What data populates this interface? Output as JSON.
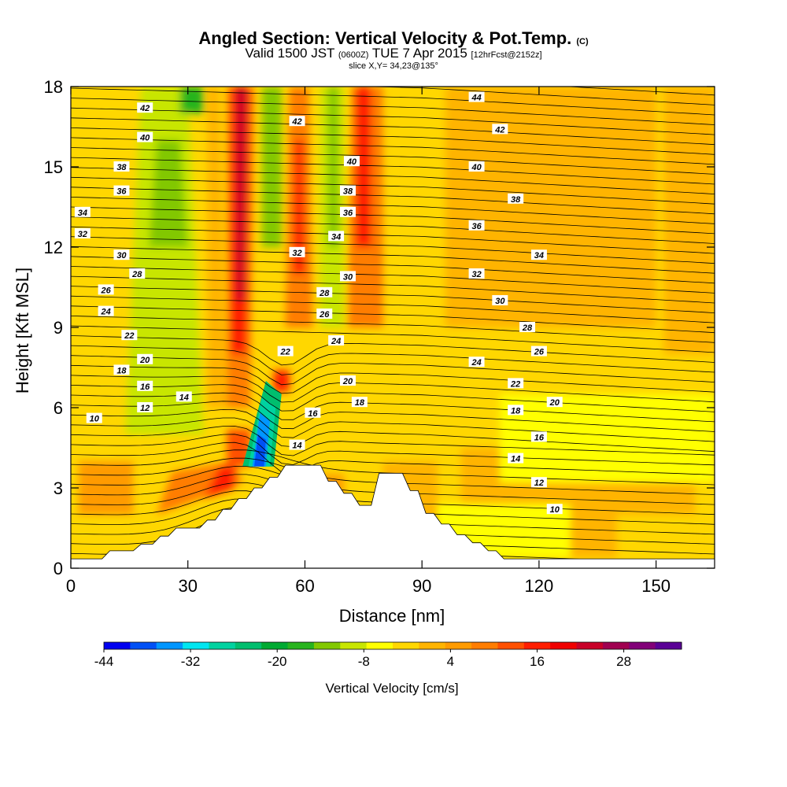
{
  "title": {
    "main": "Angled Section: Vertical Velocity & Pot.Temp.",
    "main_suffix": "(C)",
    "valid_prefix": "Valid 1500 JST",
    "valid_utc": "(0600Z)",
    "valid_date": "TUE 7 Apr 2015",
    "forecast": "[12hrFcst@2152z]",
    "slice": "slice X,Y= 34,23@135°"
  },
  "chart_data": {
    "type": "heatmap",
    "xlabel": "Distance [nm]",
    "ylabel": "Height [Kft MSL]",
    "xlim": [
      0,
      165
    ],
    "ylim": [
      0,
      18
    ],
    "x_ticks": [
      0,
      30,
      60,
      90,
      120,
      150
    ],
    "y_ticks": [
      0,
      3,
      6,
      9,
      12,
      15,
      18
    ],
    "colorbar": {
      "label": "Vertical Velocity [cm/s]",
      "ticks": [
        "-44",
        "-32",
        "-20",
        "-8",
        "4",
        "16",
        "28"
      ],
      "min": -44,
      "max": 36,
      "step": 4,
      "colors": [
        "#0000f0",
        "#0050f5",
        "#0096ff",
        "#00e6f0",
        "#00d2a0",
        "#00be6e",
        "#00aa32",
        "#28b41e",
        "#82c800",
        "#c8e600",
        "#ffff00",
        "#ffd700",
        "#ffb400",
        "#ff9b00",
        "#ff7d00",
        "#ff5000",
        "#ff1e00",
        "#f00000",
        "#c80028",
        "#a00050",
        "#820078",
        "#5a0096"
      ]
    },
    "terrain": [
      [
        0,
        0.35
      ],
      [
        8,
        0.35
      ],
      [
        10,
        0.65
      ],
      [
        16,
        0.65
      ],
      [
        18,
        0.9
      ],
      [
        21,
        0.9
      ],
      [
        23,
        1.2
      ],
      [
        25,
        1.2
      ],
      [
        27,
        1.5
      ],
      [
        33,
        1.5
      ],
      [
        35,
        1.8
      ],
      [
        37,
        1.8
      ],
      [
        39,
        2.2
      ],
      [
        41,
        2.2
      ],
      [
        43,
        2.6
      ],
      [
        45,
        2.6
      ],
      [
        47,
        3.0
      ],
      [
        49,
        3.0
      ],
      [
        51,
        3.4
      ],
      [
        53,
        3.4
      ],
      [
        55,
        3.85
      ],
      [
        64,
        3.85
      ],
      [
        66,
        3.25
      ],
      [
        68,
        3.25
      ],
      [
        70,
        2.8
      ],
      [
        72,
        2.8
      ],
      [
        74,
        2.35
      ],
      [
        77,
        2.35
      ],
      [
        79,
        3.55
      ],
      [
        85,
        3.55
      ],
      [
        87,
        2.9
      ],
      [
        89,
        2.9
      ],
      [
        91,
        2.05
      ],
      [
        93,
        2.05
      ],
      [
        95,
        1.65
      ],
      [
        97,
        1.65
      ],
      [
        99,
        1.25
      ],
      [
        101,
        1.25
      ],
      [
        103,
        0.95
      ],
      [
        105,
        0.95
      ],
      [
        107,
        0.65
      ],
      [
        109,
        0.65
      ],
      [
        111,
        0.35
      ],
      [
        165,
        0.35
      ]
    ],
    "contour_labels": [
      {
        "x": 19,
        "y": 17.2,
        "v": "42"
      },
      {
        "x": 19,
        "y": 16.1,
        "v": "40"
      },
      {
        "x": 13,
        "y": 15.0,
        "v": "38"
      },
      {
        "x": 13,
        "y": 14.1,
        "v": "36"
      },
      {
        "x": 3,
        "y": 13.3,
        "v": "34"
      },
      {
        "x": 3,
        "y": 12.5,
        "v": "32"
      },
      {
        "x": 13,
        "y": 11.7,
        "v": "30"
      },
      {
        "x": 17,
        "y": 11.0,
        "v": "28"
      },
      {
        "x": 9,
        "y": 10.4,
        "v": "26"
      },
      {
        "x": 9,
        "y": 9.6,
        "v": "24"
      },
      {
        "x": 15,
        "y": 8.7,
        "v": "22"
      },
      {
        "x": 19,
        "y": 7.8,
        "v": "20"
      },
      {
        "x": 13,
        "y": 7.4,
        "v": "18"
      },
      {
        "x": 19,
        "y": 6.8,
        "v": "16"
      },
      {
        "x": 29,
        "y": 6.4,
        "v": "14"
      },
      {
        "x": 19,
        "y": 6.0,
        "v": "12"
      },
      {
        "x": 6,
        "y": 5.6,
        "v": "10"
      },
      {
        "x": 58,
        "y": 16.7,
        "v": "42"
      },
      {
        "x": 72,
        "y": 15.2,
        "v": "40"
      },
      {
        "x": 71,
        "y": 14.1,
        "v": "38"
      },
      {
        "x": 71,
        "y": 13.3,
        "v": "36"
      },
      {
        "x": 68,
        "y": 12.4,
        "v": "34"
      },
      {
        "x": 58,
        "y": 11.8,
        "v": "32"
      },
      {
        "x": 71,
        "y": 10.9,
        "v": "30"
      },
      {
        "x": 65,
        "y": 10.3,
        "v": "28"
      },
      {
        "x": 65,
        "y": 9.5,
        "v": "26"
      },
      {
        "x": 68,
        "y": 8.5,
        "v": "24"
      },
      {
        "x": 55,
        "y": 8.1,
        "v": "22"
      },
      {
        "x": 71,
        "y": 7.0,
        "v": "20"
      },
      {
        "x": 74,
        "y": 6.2,
        "v": "18"
      },
      {
        "x": 62,
        "y": 5.8,
        "v": "16"
      },
      {
        "x": 58,
        "y": 4.6,
        "v": "14"
      },
      {
        "x": 104,
        "y": 17.6,
        "v": "44"
      },
      {
        "x": 110,
        "y": 16.4,
        "v": "42"
      },
      {
        "x": 104,
        "y": 15.0,
        "v": "40"
      },
      {
        "x": 114,
        "y": 13.8,
        "v": "38"
      },
      {
        "x": 104,
        "y": 12.8,
        "v": "36"
      },
      {
        "x": 120,
        "y": 11.7,
        "v": "34"
      },
      {
        "x": 104,
        "y": 11.0,
        "v": "32"
      },
      {
        "x": 110,
        "y": 10.0,
        "v": "30"
      },
      {
        "x": 117,
        "y": 9.0,
        "v": "28"
      },
      {
        "x": 120,
        "y": 8.1,
        "v": "26"
      },
      {
        "x": 104,
        "y": 7.7,
        "v": "24"
      },
      {
        "x": 114,
        "y": 6.9,
        "v": "22"
      },
      {
        "x": 124,
        "y": 6.2,
        "v": "20"
      },
      {
        "x": 114,
        "y": 5.9,
        "v": "18"
      },
      {
        "x": 120,
        "y": 4.9,
        "v": "16"
      },
      {
        "x": 114,
        "y": 4.1,
        "v": "14"
      },
      {
        "x": 120,
        "y": 3.2,
        "v": "12"
      },
      {
        "x": 124,
        "y": 2.2,
        "v": "10"
      }
    ]
  }
}
